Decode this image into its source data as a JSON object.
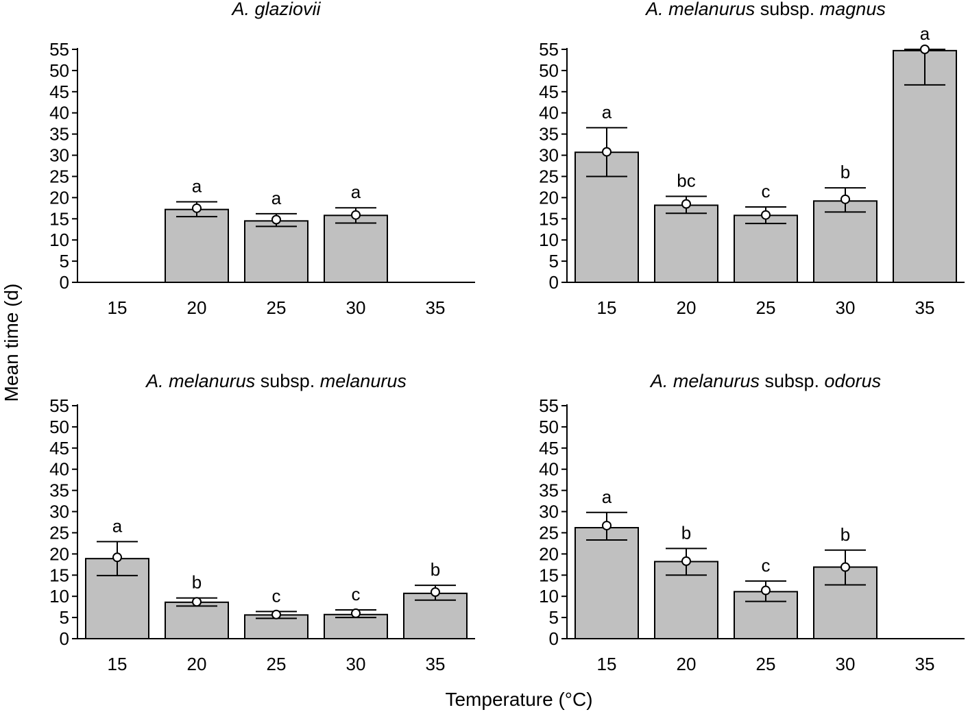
{
  "figure": {
    "ylabel": "Mean time (d)",
    "xlabel": "Temperature (°C)"
  },
  "chart_data": [
    {
      "type": "bar",
      "title_parts": [
        {
          "text": "A. glaziovii",
          "italic": true
        }
      ],
      "categories": [
        "15",
        "20",
        "25",
        "30",
        "35"
      ],
      "values": [
        null,
        17.2,
        14.5,
        15.8,
        null
      ],
      "means": [
        null,
        17.5,
        14.8,
        15.9,
        null
      ],
      "error_low": [
        null,
        15.5,
        13.2,
        14.0,
        null
      ],
      "error_high": [
        null,
        19.0,
        16.2,
        17.6,
        null
      ],
      "letters": [
        "",
        "a",
        "a",
        "a",
        ""
      ],
      "yticks": [
        "0",
        "5",
        "10",
        "15",
        "20",
        "25",
        "30",
        "35",
        "40",
        "45",
        "50",
        "55"
      ],
      "ylim": [
        0,
        55
      ],
      "bar_color": "#c0c0c0"
    },
    {
      "type": "bar",
      "title_parts": [
        {
          "text": "A. melanurus",
          "italic": true
        },
        {
          "text": " subsp. ",
          "italic": false
        },
        {
          "text": "magnus",
          "italic": true
        }
      ],
      "categories": [
        "15",
        "20",
        "25",
        "30",
        "35"
      ],
      "values": [
        30.7,
        18.2,
        15.8,
        19.2,
        54.7
      ],
      "means": [
        30.8,
        18.5,
        15.9,
        19.6,
        55.0
      ],
      "error_low": [
        25.0,
        16.3,
        13.9,
        16.6,
        46.6
      ],
      "error_high": [
        36.5,
        20.3,
        17.8,
        22.3,
        55.0
      ],
      "letters": [
        "a",
        "bc",
        "c",
        "b",
        "a"
      ],
      "yticks": [
        "0",
        "5",
        "10",
        "15",
        "20",
        "25",
        "30",
        "35",
        "40",
        "45",
        "50",
        "55"
      ],
      "ylim": [
        0,
        55
      ],
      "bar_color": "#c0c0c0"
    },
    {
      "type": "bar",
      "title_parts": [
        {
          "text": "A. melanurus",
          "italic": true
        },
        {
          "text": " subsp. ",
          "italic": false
        },
        {
          "text": "melanurus",
          "italic": true
        }
      ],
      "categories": [
        "15",
        "20",
        "25",
        "30",
        "35"
      ],
      "values": [
        18.9,
        8.6,
        5.6,
        5.7,
        10.7
      ],
      "means": [
        19.2,
        8.7,
        5.7,
        6.0,
        11.0
      ],
      "error_low": [
        14.9,
        7.7,
        4.8,
        5.0,
        9.1
      ],
      "error_high": [
        22.9,
        9.6,
        6.4,
        6.8,
        12.6
      ],
      "letters": [
        "a",
        "b",
        "c",
        "c",
        "b"
      ],
      "yticks": [
        "0",
        "5",
        "10",
        "15",
        "20",
        "25",
        "30",
        "35",
        "40",
        "45",
        "50",
        "55"
      ],
      "ylim": [
        0,
        55
      ],
      "bar_color": "#c0c0c0"
    },
    {
      "type": "bar",
      "title_parts": [
        {
          "text": "A. melanurus",
          "italic": true
        },
        {
          "text": " subsp. ",
          "italic": false
        },
        {
          "text": "odorus",
          "italic": true
        }
      ],
      "categories": [
        "15",
        "20",
        "25",
        "30",
        "35"
      ],
      "values": [
        26.2,
        18.2,
        11.1,
        16.9,
        null
      ],
      "means": [
        26.7,
        18.3,
        11.4,
        16.9,
        null
      ],
      "error_low": [
        23.3,
        15.0,
        8.8,
        12.7,
        null
      ],
      "error_high": [
        29.8,
        21.3,
        13.6,
        20.9,
        null
      ],
      "letters": [
        "a",
        "b",
        "c",
        "b",
        ""
      ],
      "yticks": [
        "0",
        "5",
        "10",
        "15",
        "20",
        "25",
        "30",
        "35",
        "40",
        "45",
        "50",
        "55"
      ],
      "ylim": [
        0,
        55
      ],
      "bar_color": "#c0c0c0"
    }
  ]
}
